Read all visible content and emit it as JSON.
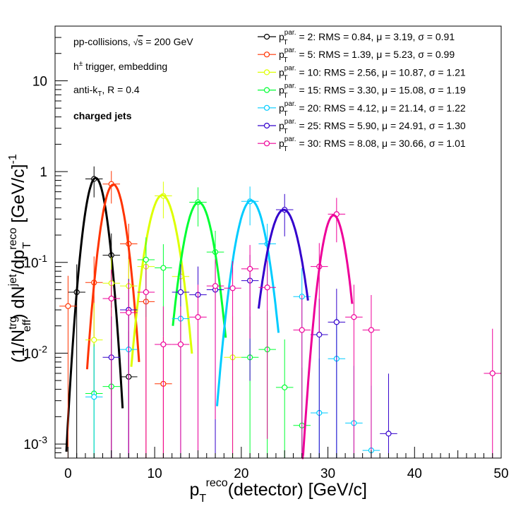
{
  "chart_data": {
    "type": "scatter",
    "xlabel": "p_T^reco(detector) [GeV/c]",
    "ylabel": "(1/N_eff^trg) dN^jet/dp_T^reco [GeV/c]^-1",
    "xlim": [
      -1.5,
      50
    ],
    "ylim": [
      0.0007,
      40
    ],
    "yscale": "log",
    "grid": false,
    "legend_position": "top-right",
    "x_ticks": [
      0,
      10,
      20,
      30,
      40,
      50
    ],
    "y_ticks": [
      {
        "value": 0.001,
        "label": "10^-3"
      },
      {
        "value": 0.01,
        "label": "10^-2"
      },
      {
        "value": 0.1,
        "label": "10^-1"
      },
      {
        "value": 1,
        "label": "1"
      },
      {
        "value": 10,
        "label": "10"
      }
    ],
    "annotations": [
      "pp-collisions, √s = 200 GeV",
      "h± trigger, embedding",
      "anti-k_T, R = 0.4",
      "charged jets"
    ],
    "series": [
      {
        "name": "p_T^par. = 2: RMS = 0.84, μ = 3.19, σ = 0.91",
        "color": "#000000",
        "fit": {
          "A": 0.85,
          "mu": 3.19,
          "sigma": 0.91,
          "range": [
            -0.2,
            6.3
          ]
        },
        "points": [
          [
            1,
            0.047
          ],
          [
            3,
            0.83
          ],
          [
            5,
            0.12
          ],
          [
            7,
            0.0055
          ]
        ]
      },
      {
        "name": "p_T^par. = 5: RMS = 1.39, μ = 5.23, σ = 0.99",
        "color": "#ff3300",
        "fit": {
          "A": 0.72,
          "mu": 5.23,
          "sigma": 0.99,
          "range": [
            2.2,
            8.2
          ]
        },
        "points": [
          [
            0,
            0.033
          ],
          [
            3,
            0.06
          ],
          [
            5,
            0.73
          ],
          [
            7,
            0.16
          ],
          [
            9,
            0.037
          ],
          [
            11,
            0.0046
          ]
        ]
      },
      {
        "name": "p_T^par. = 10: RMS = 2.56, μ = 10.87, σ = 1.21",
        "color": "#ddff00",
        "fit": {
          "A": 0.55,
          "mu": 10.87,
          "sigma": 1.21,
          "range": [
            7.3,
            14.3
          ]
        },
        "points": [
          [
            3,
            0.014
          ],
          [
            5,
            0.059
          ],
          [
            7,
            0.055
          ],
          [
            9,
            0.09
          ],
          [
            11,
            0.54
          ],
          [
            13,
            0.07
          ],
          [
            19,
            0.009
          ]
        ]
      },
      {
        "name": "p_T^par. = 15: RMS = 3.30, μ = 15.08, σ = 1.19",
        "color": "#00ff33",
        "fit": {
          "A": 0.46,
          "mu": 15.08,
          "sigma": 1.19,
          "range": [
            12.1,
            18.2
          ]
        },
        "points": [
          [
            3,
            0.0036
          ],
          [
            5,
            0.0043
          ],
          [
            9,
            0.107
          ],
          [
            11,
            0.087
          ],
          [
            15,
            0.46
          ],
          [
            17,
            0.13
          ],
          [
            21,
            0.009
          ],
          [
            23,
            0.011
          ],
          [
            25,
            0.0042
          ],
          [
            27,
            0.0016
          ]
        ]
      },
      {
        "name": "p_T^par. = 20: RMS = 4.12, μ = 21.14, σ = 1.22",
        "color": "#00ccff",
        "fit": {
          "A": 0.48,
          "mu": 21.14,
          "sigma": 1.22,
          "range": [
            17.2,
            24.3
          ]
        },
        "points": [
          [
            3,
            0.0033
          ],
          [
            7,
            0.011
          ],
          [
            13,
            0.024
          ],
          [
            21,
            0.47
          ],
          [
            23,
            0.16
          ],
          [
            27,
            0.042
          ],
          [
            29,
            0.0022
          ],
          [
            31,
            0.0087
          ],
          [
            33,
            0.0017
          ],
          [
            35,
            0.00085
          ]
        ]
      },
      {
        "name": "p_T^par. = 25: RMS = 5.90, μ = 24.91, σ = 1.30",
        "color": "#3300cc",
        "fit": {
          "A": 0.38,
          "mu": 24.91,
          "sigma": 1.3,
          "range": [
            22.0,
            27.7
          ]
        },
        "points": [
          [
            5,
            0.009
          ],
          [
            7,
            0.03
          ],
          [
            13,
            0.047
          ],
          [
            15,
            0.044
          ],
          [
            17,
            0.05
          ],
          [
            21,
            0.063
          ],
          [
            25,
            0.38
          ],
          [
            29,
            0.016
          ],
          [
            31,
            0.022
          ],
          [
            37,
            0.0013
          ]
        ]
      },
      {
        "name": "p_T^par. = 30: RMS = 8.08, μ = 30.66, σ = 1.01",
        "color": "#ee0099",
        "fit": {
          "A": 0.33,
          "mu": 30.66,
          "sigma": 1.01,
          "range": [
            27.0,
            32.8
          ]
        },
        "points": [
          [
            5,
            0.04
          ],
          [
            7,
            0.028
          ],
          [
            9,
            0.047
          ],
          [
            11,
            0.0125
          ],
          [
            13,
            0.0125
          ],
          [
            15,
            0.025
          ],
          [
            17,
            0.055
          ],
          [
            19,
            0.052
          ],
          [
            21,
            0.085
          ],
          [
            23,
            0.053
          ],
          [
            27,
            0.018
          ],
          [
            29,
            0.09
          ],
          [
            31,
            0.34
          ],
          [
            33,
            0.025
          ],
          [
            35,
            0.018
          ],
          [
            49,
            0.006
          ]
        ]
      }
    ]
  }
}
